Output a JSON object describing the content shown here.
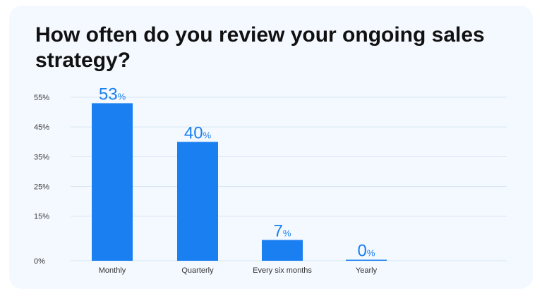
{
  "chart_data": {
    "type": "bar",
    "title": "How often do you review your ongoing sales strategy?",
    "xlabel": "",
    "ylabel": "",
    "categories": [
      "Monthly",
      "Quarterly",
      "Every six months",
      "Yearly"
    ],
    "values": [
      53,
      40,
      7,
      0
    ],
    "data_labels": [
      "53",
      "40",
      "7",
      "0"
    ],
    "data_label_suffix": "%",
    "y_ticks": [
      0,
      15,
      25,
      35,
      45,
      55
    ],
    "y_tick_labels": [
      "0%",
      "15%",
      "25%",
      "35%",
      "45%",
      "55%"
    ],
    "ylim": [
      0,
      55
    ],
    "grid": true,
    "legend": "none",
    "colors": {
      "bar": "#1a7ff0",
      "grid": "#d6e6f5",
      "card_background": "#f4f9ff"
    }
  }
}
